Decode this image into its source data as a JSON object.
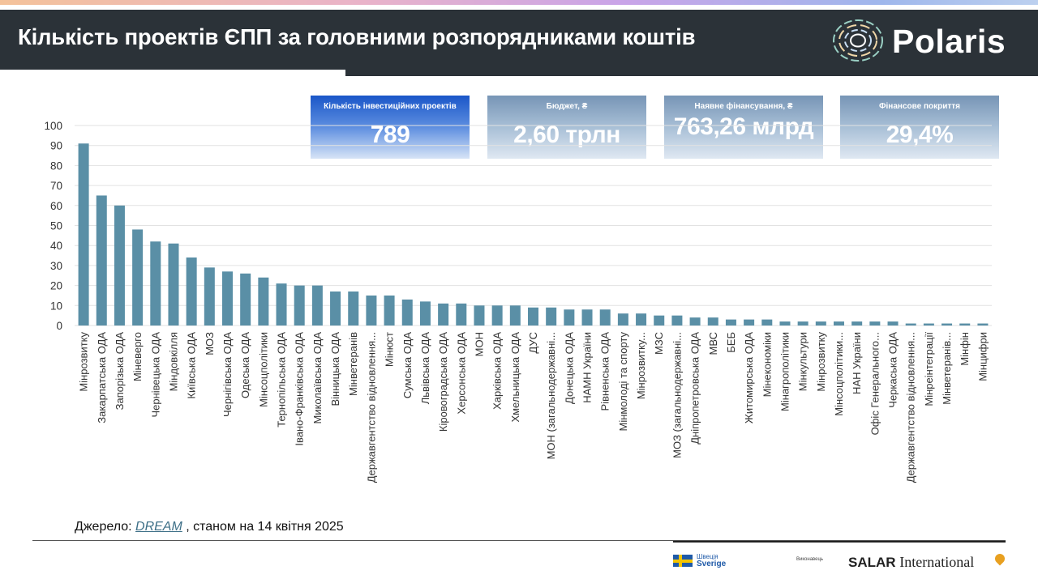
{
  "header": {
    "title": "Кількість проектів ЄПП за головними розпорядниками коштів",
    "logo_text": "Polaris"
  },
  "kpis": [
    {
      "label": "Кількість інвестиційних проектів",
      "value": "789"
    },
    {
      "label": "Бюджет, ₴",
      "value": "2,60 трлн"
    },
    {
      "label": "Наявне фінансування, ₴",
      "value": "763,26 млрд"
    },
    {
      "label": "Фінансове покриття",
      "value": "29,4%"
    }
  ],
  "colors": {
    "bar": "#5a8fa6",
    "header_bg": "#2b3238",
    "kpi_primary": "#1a56c8",
    "kpi_secondary": "#7795b6"
  },
  "chart_data": {
    "type": "bar",
    "title": "",
    "xlabel": "",
    "ylabel": "",
    "ylim": [
      0,
      100
    ],
    "yticks": [
      0,
      10,
      20,
      30,
      40,
      50,
      60,
      70,
      80,
      90,
      100
    ],
    "grid": true,
    "categories": [
      "Мінрозвитку",
      "Закарпатська ОДА",
      "Запорізька ОДА",
      "Міневерго",
      "Чернівецька ОДА",
      "Міндовкілля",
      "Київська ОДА",
      "МОЗ",
      "Чернігівська ОДА",
      "Одеська ОДА",
      "Мінсоцполітики",
      "Тернопільська ОДА",
      "Івано-Франківська ОДА",
      "Миколаївська ОДА",
      "Вінницька ОДА",
      "Мінветеранів",
      "Державгентство відновлення...",
      "Мінюст",
      "Сумська ОДА",
      "Львівська ОДА",
      "Кіровоградська ОДА",
      "Херсонська ОДА",
      "МОН",
      "Харківська ОДА",
      "Хмельницька ОДА",
      "ДУС",
      "МОН (загальнодержавні...",
      "Донецька ОДА",
      "НАМН України",
      "Рівненська ОДА",
      "Мінмолоді та спорту",
      "Мінрозвитку...",
      "МЗС",
      "МОЗ (загальнодержавні...",
      "Дніпропетровська ОДА",
      "МВС",
      "БЕБ",
      "Житомирська ОДА",
      "Мінекономіки",
      "Мінагрополітики",
      "Мінкультури",
      "Мінрозвитку",
      "Мінсоцполітики...",
      "НАН України",
      "Офіс Генерального...",
      "Черкаська ОДА",
      "Державгентство відновлення...",
      "Мінреінтеграції",
      "Мінветеранів...",
      "Мінфін",
      "Мінцифри"
    ],
    "values": [
      91,
      65,
      60,
      48,
      42,
      41,
      34,
      29,
      27,
      26,
      24,
      21,
      20,
      20,
      17,
      17,
      15,
      15,
      13,
      12,
      11,
      11,
      10,
      10,
      10,
      9,
      9,
      8,
      8,
      8,
      6,
      6,
      5,
      5,
      4,
      4,
      3,
      3,
      3,
      2,
      2,
      2,
      2,
      2,
      2,
      2,
      1,
      1,
      1,
      1,
      1
    ]
  },
  "source": {
    "prefix": "Джерело: ",
    "link": "DREAM",
    "suffix": " , станом на 14 квітня 2025"
  },
  "footer": {
    "sweden_line1": "Швеція",
    "sweden_line2": "Sverige",
    "executor_label": "Виконавець",
    "partner": "SALAR",
    "partner_suffix": "International"
  }
}
